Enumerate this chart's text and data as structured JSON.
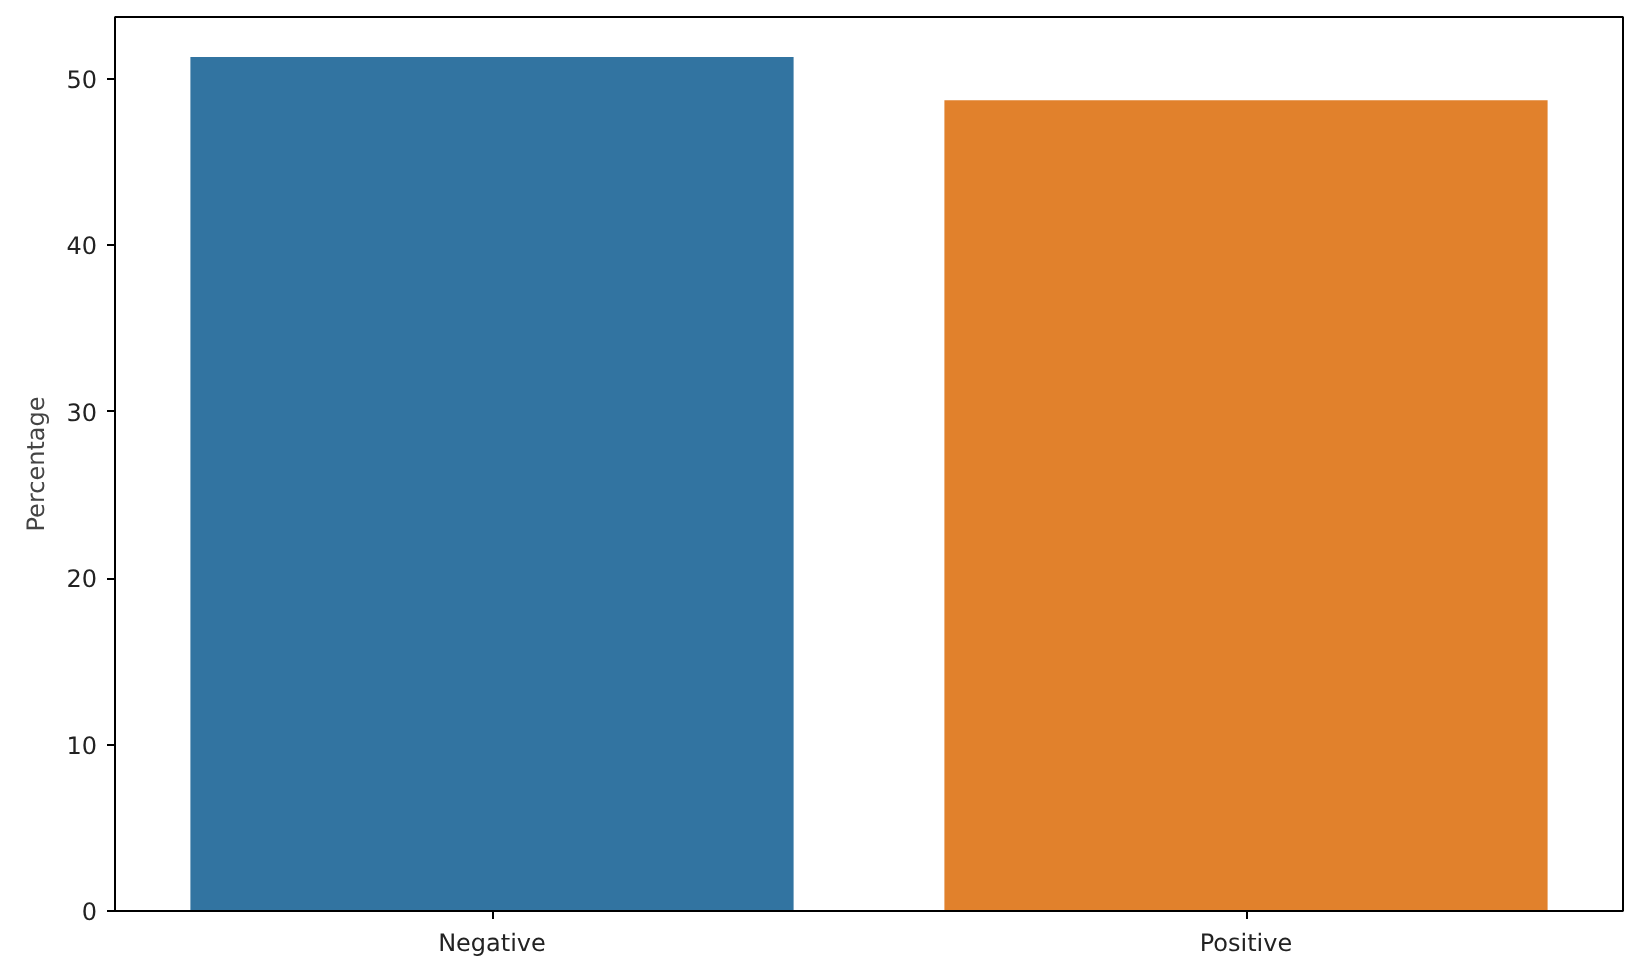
{
  "chart_data": {
    "type": "bar",
    "ylabel": "Percentage",
    "categories": [
      "Negative",
      "Positive"
    ],
    "values": [
      51.3,
      48.7
    ],
    "colors": [
      "#3274a1",
      "#e1812c"
    ],
    "ylim": [
      0,
      53.7
    ],
    "yticks": [
      0,
      10,
      20,
      30,
      40,
      50
    ],
    "grid": false
  }
}
